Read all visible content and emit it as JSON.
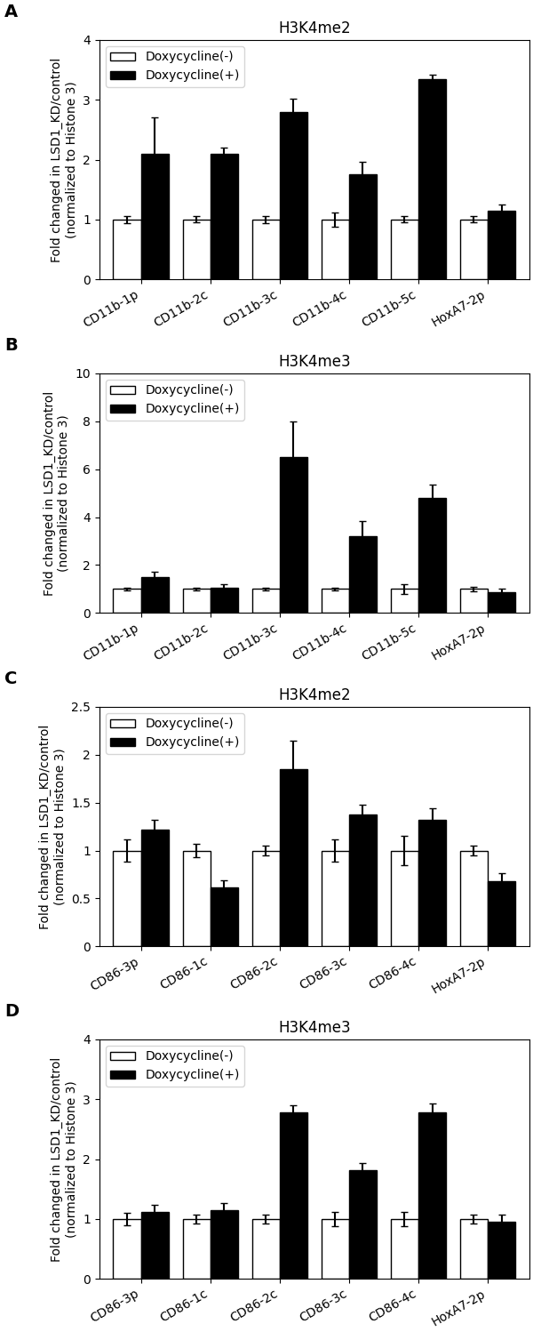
{
  "chart_data": [
    {
      "type": "bar",
      "title": "H3K4me2",
      "annotations": [
        {
          "text": "A"
        }
      ],
      "y_label": "Fold changed in LSD1_KD/control\n(normalized to Histone 3)",
      "categories": [
        "CD11b-1p",
        "CD11b-2c",
        "CD11b-3c",
        "CD11b-4c",
        "CD11b-5c",
        "HoxA7-2p"
      ],
      "series": [
        {
          "name": "Doxycycline(-)",
          "color": "white",
          "values": [
            1.0,
            1.0,
            1.0,
            1.0,
            1.0,
            1.0
          ],
          "errors": [
            0.06,
            0.05,
            0.06,
            0.12,
            0.05,
            0.05
          ]
        },
        {
          "name": "Doxycycline(+)",
          "color": "black",
          "values": [
            2.1,
            2.1,
            2.8,
            1.75,
            3.35,
            1.15
          ],
          "errors": [
            0.6,
            0.1,
            0.22,
            0.22,
            0.07,
            0.1
          ]
        }
      ],
      "ylim": [
        0,
        4
      ],
      "yticks": [
        0,
        1,
        2,
        3,
        4
      ],
      "legend": "upper left"
    },
    {
      "type": "bar",
      "title": "H3K4me3",
      "annotations": [
        {
          "text": "B"
        }
      ],
      "y_label": "Fold changed in LSD1_KD/control\n(normalized to Histone 3)",
      "categories": [
        "CD11b-1p",
        "CD11b-2c",
        "CD11b-3c",
        "CD11b-4c",
        "CD11b-5c",
        "HoxA7-2p"
      ],
      "series": [
        {
          "name": "Doxycycline(-)",
          "color": "white",
          "values": [
            1.0,
            1.0,
            1.0,
            1.0,
            1.0,
            1.0
          ],
          "errors": [
            0.05,
            0.05,
            0.05,
            0.05,
            0.2,
            0.1
          ]
        },
        {
          "name": "Doxycycline(+)",
          "color": "black",
          "values": [
            1.5,
            1.05,
            6.5,
            3.2,
            4.8,
            0.88
          ],
          "errors": [
            0.2,
            0.15,
            1.5,
            0.65,
            0.55,
            0.12
          ]
        }
      ],
      "ylim": [
        0,
        10
      ],
      "yticks": [
        0,
        2,
        4,
        6,
        8,
        10
      ],
      "legend": "upper left"
    },
    {
      "type": "bar",
      "title": "H3K4me2",
      "annotations": [
        {
          "text": "C"
        }
      ],
      "y_label": "Fold changed in LSD1_KD/control\n(normalized to Histone 3)",
      "categories": [
        "CD86-3p",
        "CD86-1c",
        "CD86-2c",
        "CD86-3c",
        "CD86-4c",
        "HoxA7-2p"
      ],
      "series": [
        {
          "name": "Doxycycline(-)",
          "color": "white",
          "values": [
            1.0,
            1.0,
            1.0,
            1.0,
            1.0,
            1.0
          ],
          "errors": [
            0.12,
            0.07,
            0.05,
            0.12,
            0.15,
            0.05
          ]
        },
        {
          "name": "Doxycycline(+)",
          "color": "black",
          "values": [
            1.22,
            0.62,
            1.85,
            1.38,
            1.32,
            0.68
          ],
          "errors": [
            0.1,
            0.07,
            0.3,
            0.1,
            0.12,
            0.08
          ]
        }
      ],
      "ylim": [
        0,
        2.5
      ],
      "yticks": [
        0,
        0.5,
        1,
        1.5,
        2,
        2.5
      ],
      "legend": "upper left"
    },
    {
      "type": "bar",
      "title": "H3K4me3",
      "annotations": [
        {
          "text": "D"
        }
      ],
      "y_label": "Fold changed in LSD1_KD/control\n(normalized to Histone 3)",
      "categories": [
        "CD86-3p",
        "CD86-1c",
        "CD86-2c",
        "CD86-3c",
        "CD86-4c",
        "HoxA7-2p"
      ],
      "series": [
        {
          "name": "Doxycycline(-)",
          "color": "white",
          "values": [
            1.0,
            1.0,
            1.0,
            1.0,
            1.0,
            1.0
          ],
          "errors": [
            0.1,
            0.08,
            0.08,
            0.12,
            0.12,
            0.08
          ]
        },
        {
          "name": "Doxycycline(+)",
          "color": "black",
          "values": [
            1.12,
            1.15,
            2.78,
            1.82,
            2.78,
            0.95
          ],
          "errors": [
            0.12,
            0.12,
            0.12,
            0.12,
            0.15,
            0.12
          ]
        }
      ],
      "ylim": [
        0,
        4
      ],
      "yticks": [
        0,
        1,
        2,
        3,
        4
      ],
      "legend": "upper left"
    }
  ]
}
